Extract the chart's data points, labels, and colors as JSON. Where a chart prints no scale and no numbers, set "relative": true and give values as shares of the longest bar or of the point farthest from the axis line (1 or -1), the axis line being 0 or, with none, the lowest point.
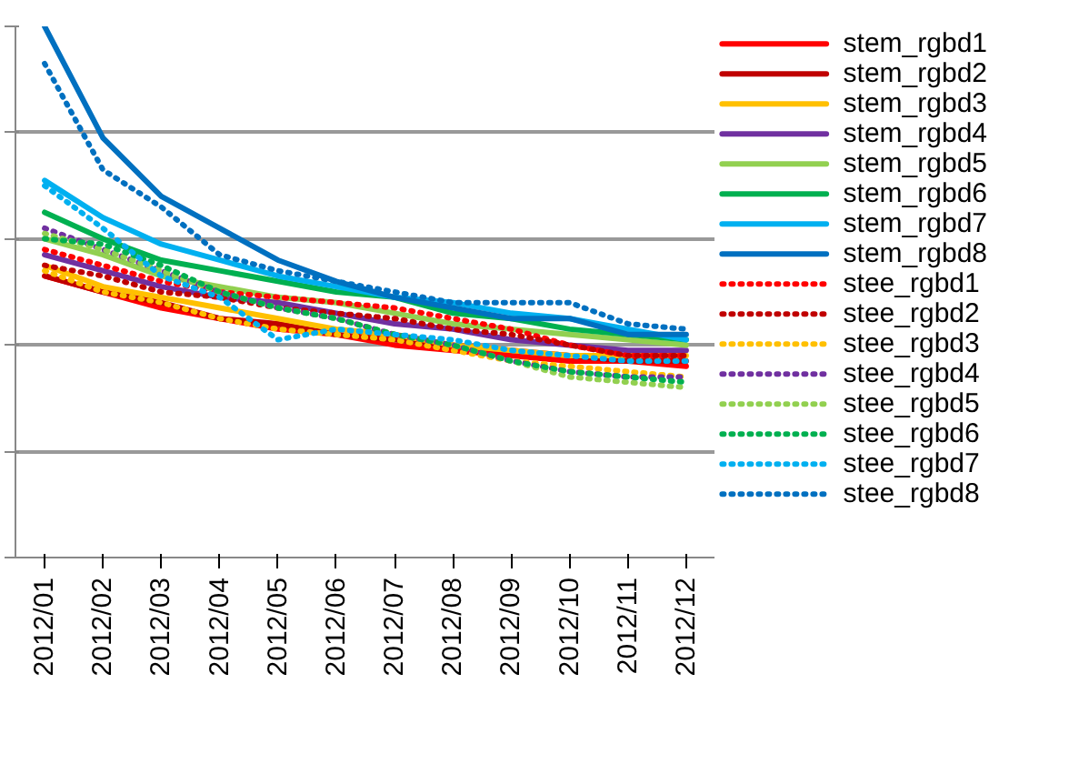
{
  "chart_data": {
    "type": "line",
    "relative": true,
    "grid": "y",
    "legend": "right",
    "categories": [
      "2012/01",
      "2012/02",
      "2012/03",
      "2012/04",
      "2012/05",
      "2012/06",
      "2012/07",
      "2012/08",
      "2012/09",
      "2012/10",
      "2012/11",
      "2012/12"
    ],
    "series": [
      {
        "name": "stem_rgbd1",
        "color": "#ff0000",
        "line_style": "solid",
        "values": [
          0.53,
          0.5,
          0.47,
          0.45,
          0.43,
          0.42,
          0.4,
          0.39,
          0.38,
          0.37,
          0.37,
          0.36
        ]
      },
      {
        "name": "stem_rgbd2",
        "color": "#c00000",
        "line_style": "solid",
        "values": [
          0.53,
          0.5,
          0.48,
          0.45,
          0.44,
          0.42,
          0.41,
          0.4,
          0.39,
          0.38,
          0.37,
          0.37
        ]
      },
      {
        "name": "stem_rgbd3",
        "color": "#ffc000",
        "line_style": "solid",
        "values": [
          0.55,
          0.51,
          0.49,
          0.47,
          0.45,
          0.43,
          0.42,
          0.4,
          0.39,
          0.38,
          0.38,
          0.38
        ]
      },
      {
        "name": "stem_rgbd4",
        "color": "#7030a0",
        "line_style": "solid",
        "values": [
          0.57,
          0.54,
          0.51,
          0.49,
          0.48,
          0.46,
          0.44,
          0.43,
          0.41,
          0.4,
          0.39,
          0.39
        ]
      },
      {
        "name": "stem_rgbd5",
        "color": "#92d050",
        "line_style": "solid",
        "values": [
          0.6,
          0.57,
          0.53,
          0.51,
          0.49,
          0.48,
          0.46,
          0.44,
          0.43,
          0.42,
          0.41,
          0.4
        ]
      },
      {
        "name": "stem_rgbd6",
        "color": "#00b050",
        "line_style": "solid",
        "values": [
          0.65,
          0.6,
          0.56,
          0.54,
          0.52,
          0.5,
          0.49,
          0.46,
          0.45,
          0.43,
          0.42,
          0.41
        ]
      },
      {
        "name": "stem_rgbd7",
        "color": "#00b0f0",
        "line_style": "solid",
        "values": [
          0.71,
          0.64,
          0.59,
          0.56,
          0.53,
          0.51,
          0.49,
          0.48,
          0.46,
          0.45,
          0.43,
          0.41
        ]
      },
      {
        "name": "stem_rgbd8",
        "color": "#0070c0",
        "line_style": "solid",
        "values": [
          1,
          0.79,
          0.68,
          0.62,
          0.56,
          0.52,
          0.49,
          0.47,
          0.45,
          0.45,
          0.42,
          0.42
        ]
      },
      {
        "name": "stee_rgbd1",
        "color": "#ff0000",
        "line_style": "dotted",
        "values": [
          0.58,
          0.55,
          0.52,
          0.5,
          0.49,
          0.48,
          0.47,
          0.45,
          0.43,
          0.4,
          0.38,
          0.38
        ]
      },
      {
        "name": "stee_rgbd2",
        "color": "#c00000",
        "line_style": "dotted",
        "values": [
          0.55,
          0.53,
          0.5,
          0.49,
          0.47,
          0.46,
          0.45,
          0.43,
          0.42,
          0.4,
          0.38,
          0.38
        ]
      },
      {
        "name": "stee_rgbd3",
        "color": "#ffc000",
        "line_style": "dotted",
        "values": [
          0.54,
          0.5,
          0.48,
          0.45,
          0.43,
          0.42,
          0.41,
          0.39,
          0.37,
          0.36,
          0.35,
          0.34
        ]
      },
      {
        "name": "stee_rgbd4",
        "color": "#7030a0",
        "line_style": "dotted",
        "values": [
          0.62,
          0.58,
          0.54,
          0.5,
          0.47,
          0.45,
          0.42,
          0.4,
          0.37,
          0.35,
          0.34,
          0.34
        ]
      },
      {
        "name": "stee_rgbd5",
        "color": "#92d050",
        "line_style": "dotted",
        "values": [
          0.61,
          0.58,
          0.54,
          0.5,
          0.47,
          0.45,
          0.42,
          0.4,
          0.37,
          0.34,
          0.33,
          0.32
        ]
      },
      {
        "name": "stee_rgbd6",
        "color": "#00b050",
        "line_style": "dotted",
        "values": [
          0.6,
          0.59,
          0.55,
          0.5,
          0.47,
          0.45,
          0.42,
          0.4,
          0.37,
          0.35,
          0.34,
          0.33
        ]
      },
      {
        "name": "stee_rgbd7",
        "color": "#00b0f0",
        "line_style": "dotted",
        "values": [
          0.7,
          0.62,
          0.53,
          0.49,
          0.41,
          0.43,
          0.42,
          0.41,
          0.39,
          0.38,
          0.37,
          0.37
        ]
      },
      {
        "name": "stee_rgbd8",
        "color": "#0070c0",
        "line_style": "dotted",
        "values": [
          0.93,
          0.73,
          0.66,
          0.57,
          0.54,
          0.52,
          0.5,
          0.48,
          0.48,
          0.48,
          0.44,
          0.43
        ]
      }
    ]
  }
}
